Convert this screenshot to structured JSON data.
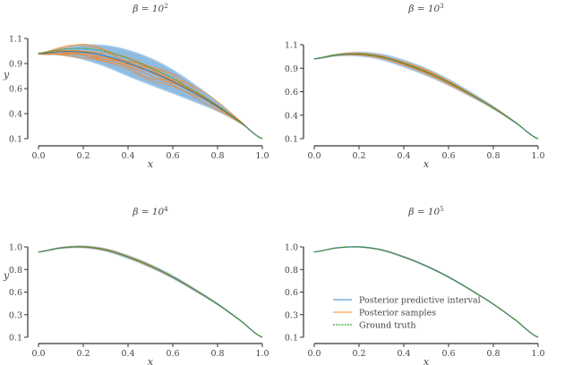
{
  "chart_data": [
    {
      "type": "line",
      "title": "β = 10",
      "title_exp": "2",
      "xlabel": "x",
      "ylabel": "y",
      "xlim": [
        0,
        1
      ],
      "ylim": [
        0.1,
        1.1
      ],
      "xticks": [
        "0.0",
        "0.2",
        "0.4",
        "0.6",
        "0.8",
        "1.0"
      ],
      "yticks": [
        "0.1",
        "0.4",
        "0.6",
        "0.9",
        "1.1"
      ],
      "band_halfwidth": 0.11,
      "sample_noise": 0.07,
      "mean_bias": -0.04,
      "n_samples": 10
    },
    {
      "type": "line",
      "title": "β = 10",
      "title_exp": "3",
      "xlabel": "x",
      "ylabel": "",
      "xlim": [
        0,
        1
      ],
      "ylim": [
        0.1,
        1.1
      ],
      "xticks": [
        "0.0",
        "0.2",
        "0.4",
        "0.6",
        "0.8",
        "1.0"
      ],
      "yticks": [
        "0.1",
        "0.4",
        "0.6",
        "0.9",
        "1.1"
      ],
      "band_halfwidth": 0.03,
      "sample_noise": 0.015,
      "mean_bias": 0,
      "n_samples": 10
    },
    {
      "type": "line",
      "title": "β = 10",
      "title_exp": "4",
      "xlabel": "x",
      "ylabel": "y",
      "xlim": [
        0,
        1
      ],
      "ylim": [
        0.1,
        1.0
      ],
      "xticks": [
        "0.0",
        "0.2",
        "0.4",
        "0.6",
        "0.8",
        "1.0"
      ],
      "yticks": [
        "0.1",
        "0.3",
        "0.6",
        "0.8",
        "1.0"
      ],
      "band_halfwidth": 0.012,
      "sample_noise": 0.006,
      "mean_bias": 0,
      "n_samples": 10
    },
    {
      "type": "line",
      "title": "β = 10",
      "title_exp": "5",
      "xlabel": "x",
      "ylabel": "",
      "xlim": [
        0,
        1
      ],
      "ylim": [
        0.1,
        1.0
      ],
      "xticks": [
        "0.0",
        "0.2",
        "0.4",
        "0.6",
        "0.8",
        "1.0"
      ],
      "yticks": [
        "0.1",
        "0.3",
        "0.6",
        "0.8",
        "1.0"
      ],
      "band_halfwidth": 0.003,
      "sample_noise": 0.001,
      "mean_bias": 0,
      "n_samples": 10
    }
  ],
  "ground_truth": {
    "x": [
      0,
      0.1,
      0.2,
      0.3,
      0.4,
      0.5,
      0.6,
      0.7,
      0.8,
      0.9,
      1.0
    ],
    "y": [
      0.95,
      0.99,
      1.0,
      0.97,
      0.9,
      0.81,
      0.7,
      0.57,
      0.43,
      0.27,
      0.1
    ]
  },
  "legend": [
    {
      "label": "Posterior predictive interval",
      "color": "#5a9fd4"
    },
    {
      "label": "Posterior samples",
      "color": "#ff9f4a"
    },
    {
      "label": "Ground truth",
      "color": "#2ca02c"
    }
  ],
  "colors": {
    "band": "#8fbbe0",
    "mean": "#1f77b4",
    "sample": "#f28a30",
    "truth": "#2ca02c",
    "axis": "#333333"
  }
}
